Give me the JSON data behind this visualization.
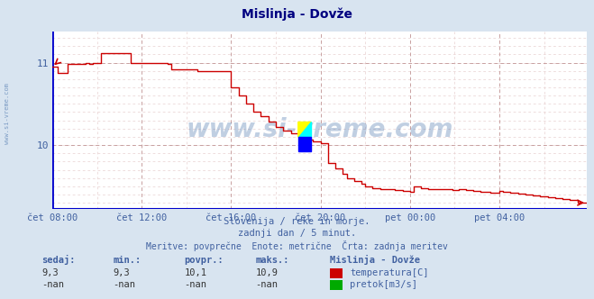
{
  "title": "Mislinja - Dovže",
  "bg_color": "#d8e4f0",
  "plot_bg_color": "#ffffff",
  "line_color": "#cc0000",
  "grid_color_major": "#c8a0a0",
  "grid_color_minor": "#e8d0d0",
  "xlabel_color": "#4060a0",
  "ylabel_color": "#4060a0",
  "title_color": "#000080",
  "text_color": "#4060a0",
  "watermark": "www.si-vreme.com",
  "watermark_color": "#3060a0",
  "xlim_start": 0,
  "xlim_end": 287,
  "ylim_min": 9.22,
  "ylim_max": 11.38,
  "yticks": [
    10.0,
    11.0
  ],
  "xtick_labels": [
    "čet 08:00",
    "čet 12:00",
    "čet 16:00",
    "čet 20:00",
    "pet 00:00",
    "pet 04:00"
  ],
  "xtick_positions": [
    0,
    48,
    96,
    144,
    192,
    240
  ],
  "caption_line1": "Slovenija / reke in morje.",
  "caption_line2": "zadnji dan / 5 minut.",
  "caption_line3": "Meritve: povprečne  Enote: metrične  Črta: zadnja meritev",
  "station_label": "Mislinja - Dovže",
  "sedaj_label": "sedaj:",
  "min_label": "min.:",
  "povpr_label": "povpr.:",
  "maks_label": "maks.:",
  "sedaj_val_temp": "9,3",
  "min_val_temp": "9,3",
  "povpr_val_temp": "10,1",
  "maks_val_temp": "10,9",
  "sedaj_val_pretok": "-nan",
  "min_val_pretok": "-nan",
  "povpr_val_pretok": "-nan",
  "maks_val_pretok": "-nan",
  "legend_temp_color": "#cc0000",
  "legend_pretok_color": "#00aa00",
  "legend_temp_label": "temperatura[C]",
  "legend_pretok_label": "pretok[m3/s]",
  "watermark_alpha": 0.3,
  "left_bar_color": "#0000cc",
  "bottom_bar_color": "#0000cc"
}
